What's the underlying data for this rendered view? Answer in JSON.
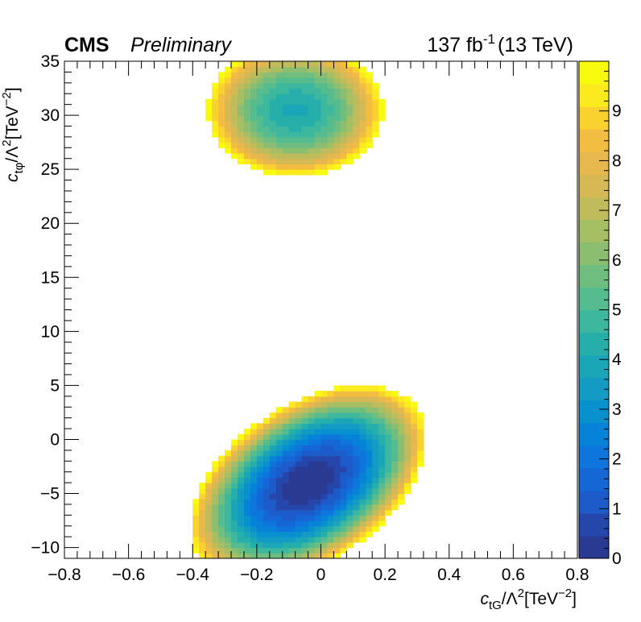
{
  "chart_data": {
    "type": "heatmap",
    "title": "CMS",
    "subtitle": "Preliminary",
    "lumi_label": "137 fb",
    "lumi_exponent": "-1",
    "energy_label": "(13 TeV)",
    "xlabel": {
      "base": "c",
      "sub": "tG",
      "mid": "/Λ",
      "sup1": "2",
      "unit": "[TeV",
      "sup2": "−2",
      "close": "]"
    },
    "ylabel": {
      "base": "c",
      "sub": "tφ",
      "mid": "/Λ",
      "sup1": "2",
      "unit": "[TeV",
      "sup2": "−2",
      "close": "]"
    },
    "xlim": [
      -0.8,
      0.8
    ],
    "ylim": [
      -11,
      35
    ],
    "zlim": [
      0,
      10
    ],
    "grid": false,
    "x_ticks": [
      "−0.8",
      "−0.6",
      "−0.4",
      "−0.2",
      "0",
      "0.2",
      "0.4",
      "0.6",
      "0.8"
    ],
    "x_tick_values": [
      -0.8,
      -0.6,
      -0.4,
      -0.2,
      0,
      0.2,
      0.4,
      0.6,
      0.8
    ],
    "y_ticks": [
      "−10",
      "−5",
      "0",
      "5",
      "10",
      "15",
      "20",
      "25",
      "30",
      "35"
    ],
    "y_tick_values": [
      -10,
      -5,
      0,
      5,
      10,
      15,
      20,
      25,
      30,
      35
    ],
    "z_ticks": [
      "0",
      "1",
      "2",
      "3",
      "4",
      "5",
      "6",
      "7",
      "8",
      "9"
    ],
    "z_tick_values": [
      0,
      1,
      2,
      3,
      4,
      5,
      6,
      7,
      8,
      9
    ],
    "colormap": [
      "#2a3991",
      "#2547ab",
      "#1e5bca",
      "#1567d6",
      "#0d75dc",
      "#0683d8",
      "#0890cf",
      "#139bc4",
      "#1ba6b8",
      "#26afaa",
      "#3db89e",
      "#55bc8f",
      "#6fbe80",
      "#8cbe72",
      "#a6be64",
      "#c0bc5b",
      "#d6b955",
      "#e6b84e",
      "#f2bd40",
      "#f9d230",
      "#fbeb1e",
      "#f9fb0e"
    ],
    "regions": [
      {
        "name": "lower minimum",
        "center": [
          -0.04,
          -4.0
        ],
        "z_min": 0,
        "boundary_z": 10,
        "extent_x": [
          -0.4,
          0.36
        ],
        "extent_y": [
          -11,
          7.3
        ]
      },
      {
        "name": "upper minimum",
        "center": [
          -0.08,
          30.5
        ],
        "z_min": 4.0,
        "boundary_z": 10,
        "extent_x": [
          -0.34,
          0.25
        ],
        "extent_y": [
          24.1,
          35
        ]
      }
    ]
  }
}
